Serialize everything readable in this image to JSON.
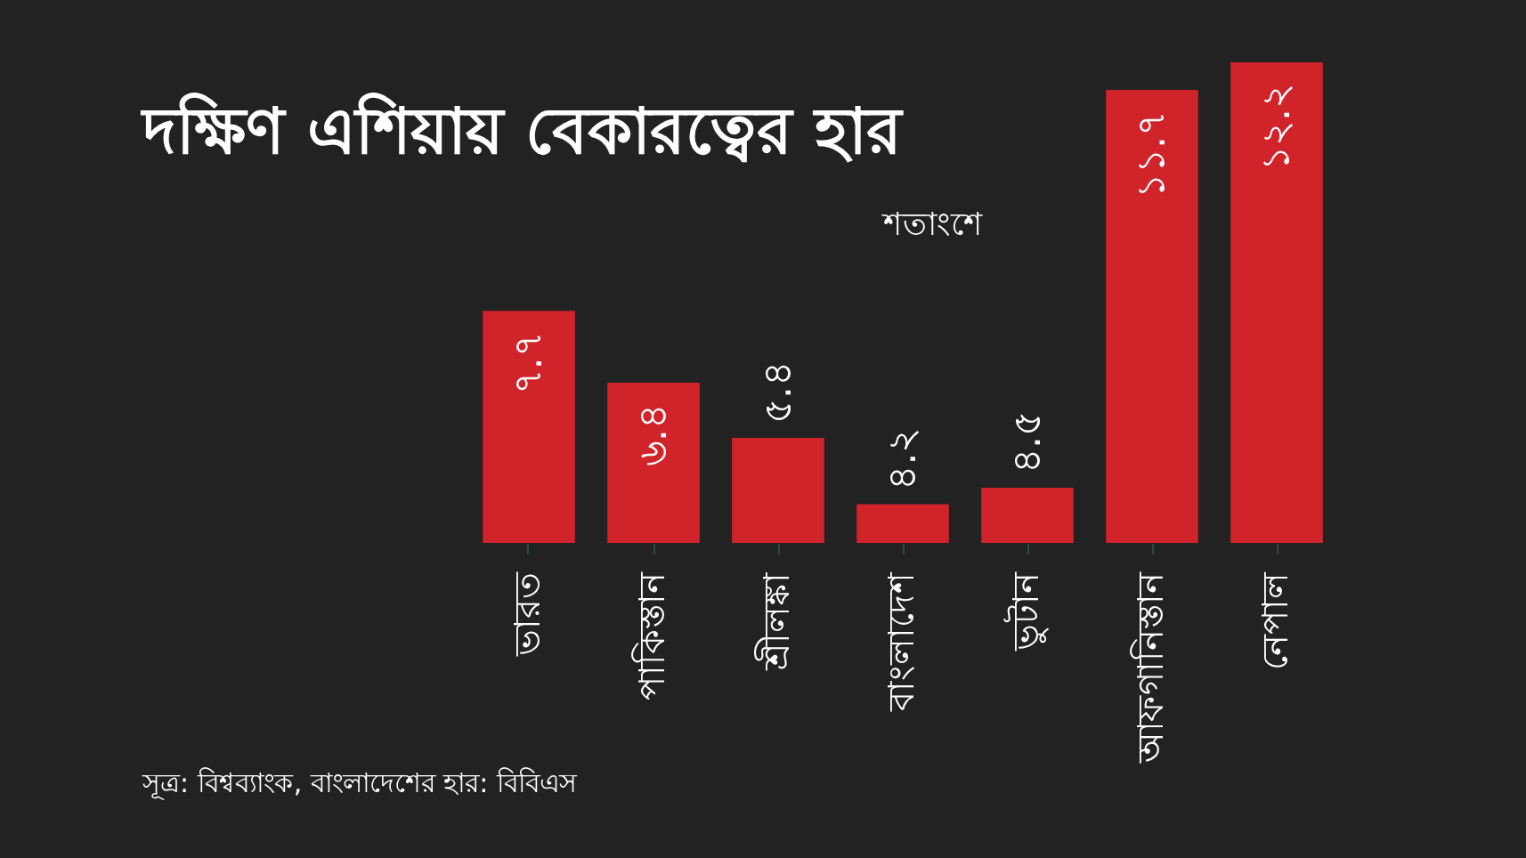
{
  "chart_data": {
    "type": "bar",
    "title": "দক্ষিণ এশিয়ায় বেকারত্বের হার",
    "subtitle": "শতাংশে",
    "categories": [
      "ভারত",
      "পাকিস্তান",
      "শ্রীলঙ্কা",
      "বাংলাদেশ",
      "ভুটান",
      "আফগানিস্তান",
      "নেপাল"
    ],
    "values": [
      7.7,
      6.4,
      5.4,
      4.2,
      4.5,
      11.7,
      12.2
    ],
    "value_labels": [
      "৭.৭",
      "৬.৪",
      "৫.৪",
      "৪.২",
      "৪.৫",
      "১১.৭",
      "১২.২"
    ],
    "color": "#d0232a",
    "ylim": [
      3.5,
      12.2
    ],
    "tick_labels": "x",
    "grid": false,
    "annotations": [
      "সূত্র: বিশ্বব্যাংক, বাংলাদেশের হার: বিবিএস"
    ]
  }
}
